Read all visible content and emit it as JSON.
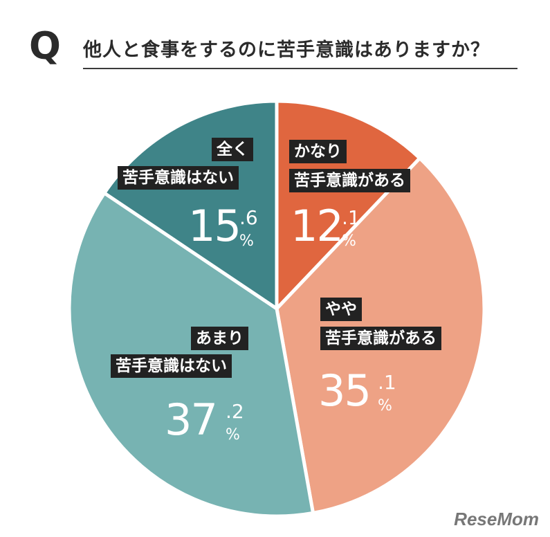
{
  "header": {
    "q_mark": "Q",
    "question": "他人と食事をするのに苦手意識はありますか？"
  },
  "chart_data": {
    "type": "pie",
    "slices": [
      {
        "label_line1": "かなり",
        "label_line2": "苦手意識がある",
        "value": 12.1,
        "int": "12",
        "dec": ".1",
        "unit": "%",
        "color": "#e0663f"
      },
      {
        "label_line1": "やや",
        "label_line2": "苦手意識がある",
        "value": 35.1,
        "int": "35",
        "dec": ".1",
        "unit": "%",
        "color": "#eea285"
      },
      {
        "label_line1": "あまり",
        "label_line2": "苦手意識はない",
        "value": 37.2,
        "int": "37",
        "dec": ".2",
        "unit": "%",
        "color": "#77b3b2"
      },
      {
        "label_line1": "全く",
        "label_line2": "苦手意識はない",
        "value": 15.6,
        "int": "15",
        "dec": ".6",
        "unit": "%",
        "color": "#3f8488"
      }
    ]
  },
  "watermark": "ReseMom"
}
